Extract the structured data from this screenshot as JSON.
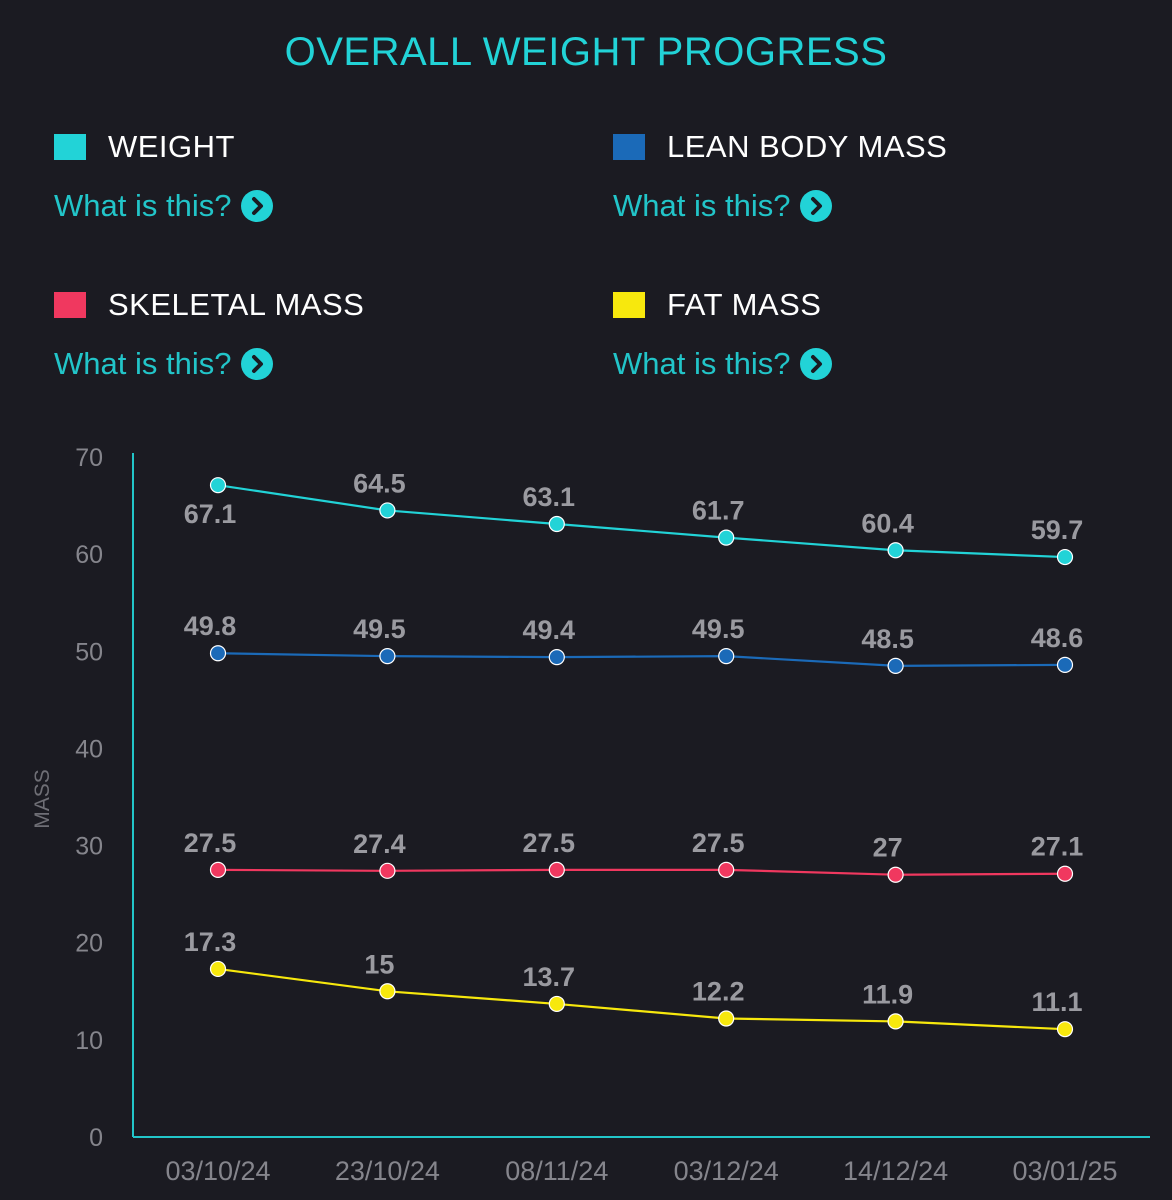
{
  "header": {
    "title": "OVERALL WEIGHT PROGRESS"
  },
  "legend": [
    {
      "label": "WEIGHT",
      "color": "#22d3d7",
      "link": "What is this?",
      "icon": "chevron-right-icon"
    },
    {
      "label": "LEAN BODY MASS",
      "color": "#1b6ab8",
      "link": "What is this?",
      "icon": "chevron-right-icon"
    },
    {
      "label": "SKELETAL MASS",
      "color": "#f0385f",
      "link": "What is this?",
      "icon": "chevron-right-icon"
    },
    {
      "label": "FAT MASS",
      "color": "#f7e80d",
      "link": "What is this?",
      "icon": "chevron-right-icon"
    }
  ],
  "chart_data": {
    "type": "line",
    "x": [
      "03/10/24",
      "23/10/24",
      "08/11/24",
      "03/12/24",
      "14/12/24",
      "03/01/25"
    ],
    "ylabel": "MASS",
    "xlabel": "",
    "ylim": [
      0,
      70
    ],
    "yticks": [
      0,
      10,
      20,
      30,
      40,
      50,
      60,
      70
    ],
    "grid": false,
    "series": [
      {
        "name": "WEIGHT",
        "color": "#22d3d7",
        "values": [
          67.1,
          64.5,
          63.1,
          61.7,
          60.4,
          59.7
        ],
        "label_position": [
          "below",
          "above",
          "above",
          "above",
          "above",
          "above"
        ]
      },
      {
        "name": "LEAN BODY MASS",
        "color": "#1b6ab8",
        "values": [
          49.8,
          49.5,
          49.4,
          49.5,
          48.5,
          48.6
        ],
        "label_position": [
          "above",
          "above",
          "above",
          "above",
          "above",
          "above"
        ]
      },
      {
        "name": "SKELETAL MASS",
        "color": "#f0385f",
        "values": [
          27.5,
          27.4,
          27.5,
          27.5,
          27,
          27.1
        ],
        "label_position": [
          "above",
          "above",
          "above",
          "above",
          "above",
          "above"
        ]
      },
      {
        "name": "FAT MASS",
        "color": "#f7e80d",
        "values": [
          17.3,
          15,
          13.7,
          12.2,
          11.9,
          11.1
        ],
        "label_position": [
          "above",
          "above",
          "above",
          "above",
          "above",
          "above"
        ]
      }
    ]
  }
}
